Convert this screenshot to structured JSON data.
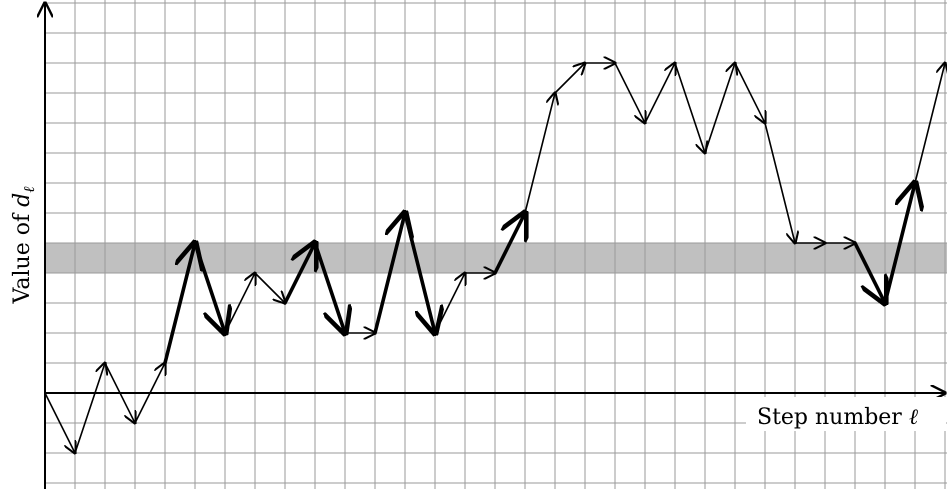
{
  "x_axis": {
    "label_prefix": "Step number ",
    "label_symbol": "ℓ"
  },
  "y_axis": {
    "label_prefix": "Value of ",
    "label_symbol": "d",
    "label_subscript": "ℓ"
  },
  "highlight_band": {
    "y_range": [
      4,
      5
    ],
    "color": "#c0c0c0"
  },
  "path": {
    "points": [
      [
        0,
        0
      ],
      [
        1,
        -2
      ],
      [
        2,
        1
      ],
      [
        3,
        -1
      ],
      [
        4,
        1
      ],
      [
        5,
        5
      ],
      [
        6,
        2
      ],
      [
        7,
        4
      ],
      [
        8,
        3
      ],
      [
        9,
        5
      ],
      [
        10,
        2
      ],
      [
        11,
        2
      ],
      [
        12,
        6
      ],
      [
        13,
        2
      ],
      [
        14,
        4
      ],
      [
        15,
        4
      ],
      [
        16,
        6
      ],
      [
        17,
        10
      ],
      [
        18,
        11
      ],
      [
        19,
        11
      ],
      [
        20,
        9
      ],
      [
        21,
        11
      ],
      [
        22,
        8
      ],
      [
        23,
        11
      ],
      [
        24,
        9
      ],
      [
        25,
        5
      ],
      [
        26,
        5
      ],
      [
        27,
        5
      ],
      [
        28,
        3
      ],
      [
        29,
        7
      ],
      [
        30,
        11
      ]
    ],
    "bold_steps": [
      4,
      5,
      8,
      9,
      11,
      12,
      15,
      27,
      28
    ]
  },
  "colors": {
    "grid": "#9a9a9a",
    "axis": "#000000",
    "path": "#000000",
    "band": "#c0c0c0"
  }
}
